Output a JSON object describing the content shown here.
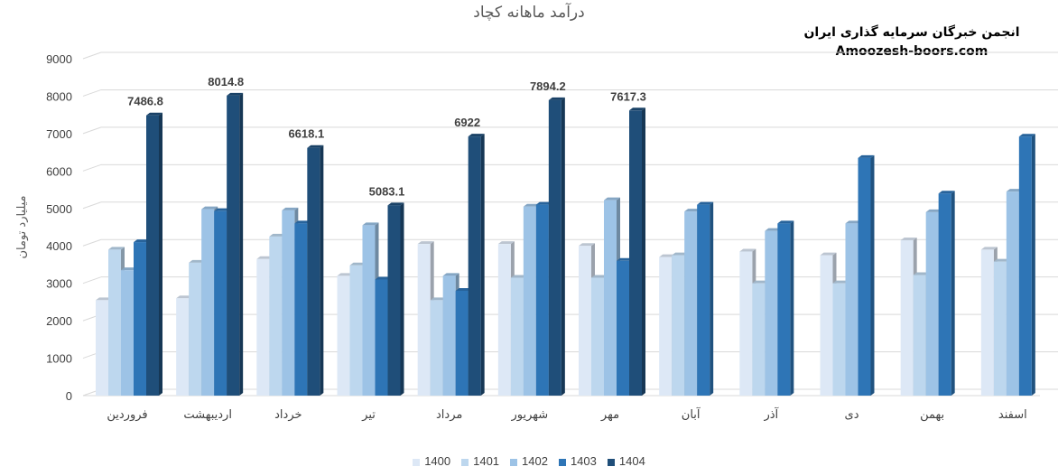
{
  "chart_data": {
    "type": "bar",
    "title": "درآمد ماهانه کچاد",
    "ylabel": "میلیارد تومان",
    "xlabel": "",
    "ylim": [
      0,
      9000
    ],
    "yticks": [
      0,
      1000,
      2000,
      3000,
      4000,
      5000,
      6000,
      7000,
      8000,
      9000
    ],
    "grid": true,
    "legend_position": "bottom",
    "categories": [
      "فروردین",
      "اردیبهشت",
      "خرداد",
      "تیر",
      "مرداد",
      "شهریور",
      "مهر",
      "آبان",
      "آذر",
      "دی",
      "بهمن",
      "اسفند"
    ],
    "series": [
      {
        "name": "1400",
        "color": "#dde8f6",
        "values": [
          2550,
          2600,
          3650,
          3200,
          4050,
          4050,
          4000,
          3700,
          3850,
          3750,
          4150,
          3900
        ]
      },
      {
        "name": "1401",
        "color": "#bdd7ee",
        "values": [
          3900,
          3550,
          4250,
          3480,
          2550,
          3150,
          3150,
          3750,
          3000,
          3000,
          3220,
          3580
        ]
      },
      {
        "name": "1402",
        "color": "#9dc3e6",
        "values": [
          3350,
          4980,
          4950,
          4550,
          3200,
          5050,
          5220,
          4920,
          4400,
          4600,
          4900,
          5450
        ]
      },
      {
        "name": "1403",
        "color": "#2e75b6",
        "values": [
          4100,
          4930,
          4600,
          3100,
          2800,
          5100,
          3600,
          5100,
          4600,
          6350,
          5400,
          6920
        ]
      },
      {
        "name": "1404",
        "color": "#1f4e79",
        "values": [
          7486.8,
          8014.8,
          6618.1,
          5083.1,
          6922,
          7894.2,
          7617.3,
          null,
          null,
          null,
          null,
          null
        ]
      }
    ],
    "data_labels": {
      "series": "1404",
      "labels": [
        "7486.8",
        "8014.8",
        "6618.1",
        "5083.1",
        "6922",
        "7894.2",
        "7617.3"
      ]
    }
  },
  "watermark": {
    "line1": "انجمن خبرگان سرمایه گذاری ایران",
    "line2": "Amoozesh-boors.com"
  }
}
